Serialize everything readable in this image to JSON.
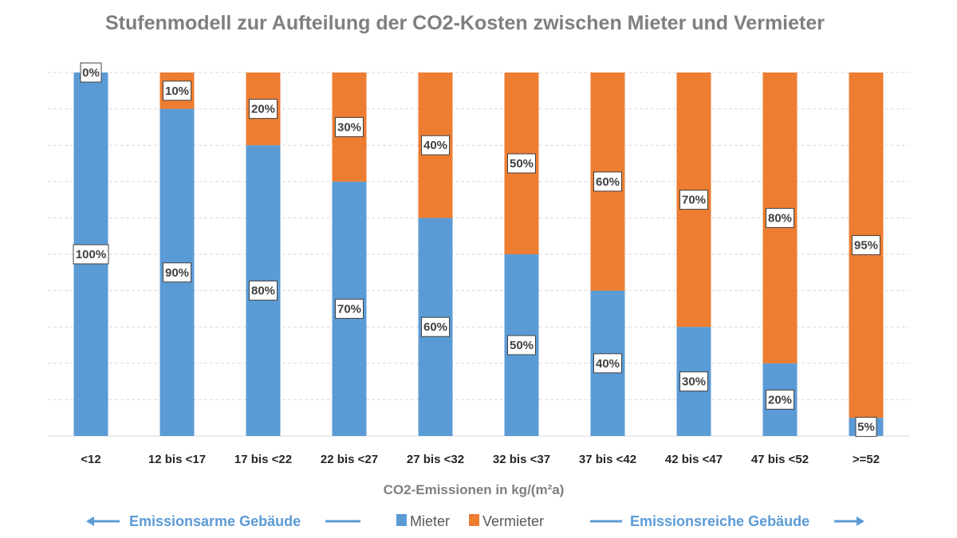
{
  "chart_data": {
    "type": "bar",
    "stacked": true,
    "title": "Stufenmodell zur Aufteilung der CO2-Kosten zwischen Mieter und Vermieter",
    "xlabel": "CO2-Emissionen in kg/(m²a)",
    "ylabel": "",
    "ylim": [
      0,
      100
    ],
    "grid": true,
    "legend_placement": "bottom",
    "categories": [
      "<12",
      "12 bis <17",
      "17 bis <22",
      "22 bis <27",
      "27 bis <32",
      "32 bis <37",
      "37 bis <42",
      "42 bis <47",
      "47 bis <52",
      ">=52"
    ],
    "series": [
      {
        "name": "Mieter",
        "color": "#5b9bd5",
        "values": [
          100,
          90,
          80,
          70,
          60,
          50,
          40,
          30,
          20,
          5
        ]
      },
      {
        "name": "Vermieter",
        "color": "#ed7d31",
        "values": [
          0,
          10,
          20,
          30,
          40,
          50,
          60,
          70,
          80,
          95
        ]
      }
    ],
    "annotations": {
      "left": "Emissionsarme Gebäude",
      "right": "Emissionsreiche Gebäude"
    }
  }
}
